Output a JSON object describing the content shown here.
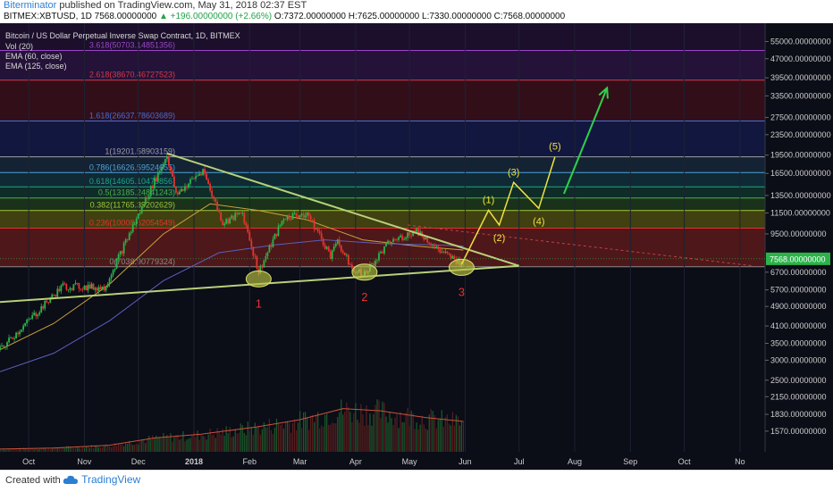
{
  "header": {
    "author": "Biterminator",
    "published": " published on TradingView.com, May 31, 2018 02:37 EST",
    "ticker_line_a": "BITMEX:XBTUSD, 1D  7568.00000000 ",
    "ticker_change": "▲ +196.00000000 (+2.66%)",
    "ticker_line_b": " O:7372.00000000 H:7625.00000000 L:7330.00000000 C:7568.00000000"
  },
  "legend": {
    "symbol": "Bitcoin / US Dollar Perpetual Inverse Swap Contract, 1D, BITMEX",
    "items": [
      "Vol (20)",
      "EMA (60, close)",
      "EMA (125, close)"
    ]
  },
  "footer": {
    "created": "Created with",
    "brand": "TradingView"
  },
  "colors": {
    "background": "#0b0d17",
    "up": "#2bb34a",
    "down": "#e3342f",
    "ema60": "#c7a23a",
    "ema125": "#5b5fbf",
    "triangle": "#b8d07a",
    "elliott": "#f0e040",
    "arrow": "#2fd14a",
    "price_tag": "#2bb34a",
    "volume": "#c8523a"
  },
  "chart_data": {
    "type": "line",
    "title": "Bitcoin / US Dollar Perpetual Inverse Swap Contract, 1D, BITMEX",
    "y_scale": "log",
    "ylim": [
      1300,
      65000
    ],
    "xlim": [
      "2017-09-15",
      "2018-11-15"
    ],
    "x_ticks": [
      "Oct",
      "Nov",
      "Dec",
      "2018",
      "Feb",
      "Mar",
      "Apr",
      "May",
      "Jun",
      "Jul",
      "Aug",
      "Sep",
      "Oct",
      "No"
    ],
    "x_tick_dates": [
      "2017-10-01",
      "2017-11-01",
      "2017-12-01",
      "2018-01-01",
      "2018-02-01",
      "2018-03-01",
      "2018-04-01",
      "2018-05-01",
      "2018-06-01",
      "2018-07-01",
      "2018-08-01",
      "2018-09-01",
      "2018-10-01",
      "2018-11-01"
    ],
    "y_ticks": [
      "55000.00000000",
      "47000.00000000",
      "39500.00000000",
      "33500.00000000",
      "27500.00000000",
      "23500.00000000",
      "19500.00000000",
      "16500.00000000",
      "13500.00000000",
      "11500.00000000",
      "9500.00000000",
      "7568.00000000",
      "6700.00000000",
      "5700.00000000",
      "4900.00000000",
      "4100.00000000",
      "3500.00000000",
      "3000.00000000",
      "2500.00000000",
      "2150.00000000",
      "1830.00000000",
      "1570.00000000"
    ],
    "last_price": "7568.00000000",
    "price_path": [
      {
        "date": "2017-09-15",
        "price": 3300
      },
      {
        "date": "2017-10-01",
        "price": 4300
      },
      {
        "date": "2017-10-20",
        "price": 5900
      },
      {
        "date": "2017-11-12",
        "price": 5800
      },
      {
        "date": "2017-11-29",
        "price": 10500
      },
      {
        "date": "2017-12-17",
        "price": 19500
      },
      {
        "date": "2017-12-22",
        "price": 13500
      },
      {
        "date": "2018-01-06",
        "price": 17000
      },
      {
        "date": "2018-01-17",
        "price": 10500
      },
      {
        "date": "2018-01-28",
        "price": 11500
      },
      {
        "date": "2018-02-06",
        "price": 6700
      },
      {
        "date": "2018-02-20",
        "price": 11000
      },
      {
        "date": "2018-03-05",
        "price": 11500
      },
      {
        "date": "2018-03-18",
        "price": 7800
      },
      {
        "date": "2018-03-21",
        "price": 9000
      },
      {
        "date": "2018-04-01",
        "price": 6700
      },
      {
        "date": "2018-04-06",
        "price": 6600
      },
      {
        "date": "2018-04-20",
        "price": 8800
      },
      {
        "date": "2018-05-05",
        "price": 9800
      },
      {
        "date": "2018-05-18",
        "price": 8100
      },
      {
        "date": "2018-05-29",
        "price": 7300
      },
      {
        "date": "2018-05-31",
        "price": 7568
      }
    ],
    "fibonacci": [
      {
        "ratio": "0",
        "label": "0(7038.90779324)",
        "price": 7038.90779324,
        "color": "#8a8a8a"
      },
      {
        "ratio": "0.236",
        "label": "0.236(10008.62054549)",
        "price": 10008.62054549,
        "color": "#e3342f"
      },
      {
        "ratio": "0.382",
        "label": "0.382(11765.39202629)",
        "price": 11765.39202629,
        "color": "#a6c43a"
      },
      {
        "ratio": "0.5",
        "label": "0.5(13185.24841243)",
        "price": 13185.24841243,
        "color": "#4caf50"
      },
      {
        "ratio": "0.618",
        "label": "0.618(14605.10479856)",
        "price": 14605.10479856,
        "color": "#1ea58a"
      },
      {
        "ratio": "0.786",
        "label": "0.786(16626.59524655)",
        "price": 16626.59524655,
        "color": "#4fa3d9"
      },
      {
        "ratio": "1",
        "label": "1(19201.58903159)",
        "price": 19201.58903159,
        "color": "#9e9e9e"
      },
      {
        "ratio": "1.618",
        "label": "1.618(26637.78603689)",
        "price": 26637.78603689,
        "color": "#3f6fd9"
      },
      {
        "ratio": "2.618",
        "label": "2.618(38670.46727523)",
        "price": 38670.46727523,
        "color": "#d23a4a"
      },
      {
        "ratio": "3.618",
        "label": "3.618(50703.14851356)",
        "price": 50703.14851356,
        "color": "#9a46c8"
      }
    ],
    "fib_bands": [
      {
        "from": 7038.90779324,
        "to": 10008.62054549,
        "fill": "#5a1a1a"
      },
      {
        "from": 10008.62054549,
        "to": 11765.39202629,
        "fill": "#4a4a10"
      },
      {
        "from": 11765.39202629,
        "to": 13185.24841243,
        "fill": "#1c3a1a"
      },
      {
        "from": 13185.24841243,
        "to": 14605.10479856,
        "fill": "#10342a"
      },
      {
        "from": 14605.10479856,
        "to": 16626.59524655,
        "fill": "#10303a"
      },
      {
        "from": 16626.59524655,
        "to": 19201.58903159,
        "fill": "#16283a"
      },
      {
        "from": 19201.58903159,
        "to": 26637.78603689,
        "fill": "#141a48"
      },
      {
        "from": 26637.78603689,
        "to": 38670.46727523,
        "fill": "#3a0f1a"
      },
      {
        "from": 38670.46727523,
        "to": 50703.14851356,
        "fill": "#2a1440"
      },
      {
        "from": 50703.14851356,
        "to": 65000,
        "fill": "#201030"
      }
    ],
    "triangle_upper": [
      {
        "date": "2017-12-17",
        "price": 19800
      },
      {
        "date": "2018-07-01",
        "price": 7100
      }
    ],
    "triangle_lower": [
      {
        "date": "2017-09-15",
        "price": 5100
      },
      {
        "date": "2018-07-01",
        "price": 7100
      }
    ],
    "dashed_extension": [
      {
        "date": "2018-04-30",
        "price": 10300
      },
      {
        "date": "2018-11-08",
        "price": 7100
      }
    ],
    "touch_points": [
      {
        "label": "1",
        "date": "2018-02-06",
        "price": 6300
      },
      {
        "label": "2",
        "date": "2018-04-06",
        "price": 6700
      },
      {
        "label": "3",
        "date": "2018-05-30",
        "price": 7000
      }
    ],
    "elliott_waves": [
      {
        "label": "",
        "date": "2018-05-30",
        "price": 7200
      },
      {
        "label": "(1)",
        "date": "2018-06-14",
        "price": 11800
      },
      {
        "label": "(2)",
        "date": "2018-06-20",
        "price": 10300
      },
      {
        "label": "(3)",
        "date": "2018-06-28",
        "price": 15200
      },
      {
        "label": "(4)",
        "date": "2018-07-12",
        "price": 12000
      },
      {
        "label": "(5)",
        "date": "2018-07-21",
        "price": 19200
      }
    ],
    "projection_arrow": [
      {
        "date": "2018-07-26",
        "price": 13700
      },
      {
        "date": "2018-08-19",
        "price": 36000
      }
    ],
    "ema60": [
      {
        "date": "2017-09-15",
        "price": 3300
      },
      {
        "date": "2017-10-15",
        "price": 4200
      },
      {
        "date": "2017-11-15",
        "price": 6000
      },
      {
        "date": "2017-12-15",
        "price": 9500
      },
      {
        "date": "2018-01-10",
        "price": 12500
      },
      {
        "date": "2018-02-05",
        "price": 11800
      },
      {
        "date": "2018-03-05",
        "price": 10800
      },
      {
        "date": "2018-04-05",
        "price": 9000
      },
      {
        "date": "2018-05-05",
        "price": 8500
      },
      {
        "date": "2018-05-31",
        "price": 8200
      }
    ],
    "ema125": [
      {
        "date": "2017-09-15",
        "price": 2700
      },
      {
        "date": "2017-10-15",
        "price": 3200
      },
      {
        "date": "2017-11-15",
        "price": 4300
      },
      {
        "date": "2017-12-15",
        "price": 6200
      },
      {
        "date": "2018-01-15",
        "price": 8000
      },
      {
        "date": "2018-02-15",
        "price": 8600
      },
      {
        "date": "2018-03-15",
        "price": 9000
      },
      {
        "date": "2018-04-15",
        "price": 8700
      },
      {
        "date": "2018-05-15",
        "price": 8600
      },
      {
        "date": "2018-05-31",
        "price": 8500
      }
    ],
    "volume_profile": [
      {
        "date": "2017-09-15",
        "v": 0.05
      },
      {
        "date": "2017-10-15",
        "v": 0.07
      },
      {
        "date": "2017-11-15",
        "v": 0.12
      },
      {
        "date": "2017-12-10",
        "v": 0.25
      },
      {
        "date": "2018-01-05",
        "v": 0.32
      },
      {
        "date": "2018-02-05",
        "v": 0.45
      },
      {
        "date": "2018-03-01",
        "v": 0.58
      },
      {
        "date": "2018-03-25",
        "v": 0.78
      },
      {
        "date": "2018-04-15",
        "v": 0.74
      },
      {
        "date": "2018-05-10",
        "v": 0.62
      },
      {
        "date": "2018-05-31",
        "v": 0.55
      }
    ]
  }
}
